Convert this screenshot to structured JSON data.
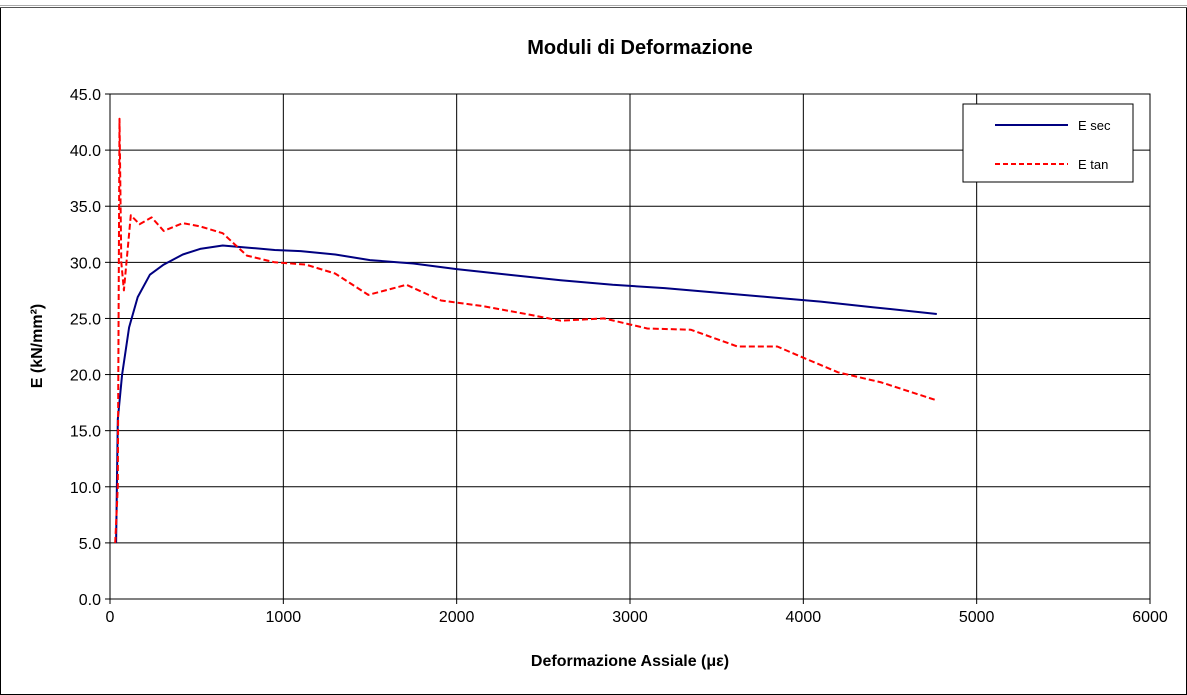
{
  "chart_data": {
    "type": "line",
    "title": "Moduli di Deformazione",
    "xlabel": "Deformazione Assiale (με)",
    "ylabel": "E (kN/mm²)",
    "xlim": [
      0,
      6000
    ],
    "ylim": [
      0,
      45
    ],
    "x_ticks": [
      "0",
      "1000",
      "2000",
      "3000",
      "4000",
      "5000",
      "6000"
    ],
    "y_ticks": [
      "0.0",
      "5.0",
      "10.0",
      "15.0",
      "20.0",
      "25.0",
      "30.0",
      "35.0",
      "40.0",
      "45.0"
    ],
    "x_tick_values": [
      0,
      1000,
      2000,
      3000,
      4000,
      5000,
      6000
    ],
    "y_tick_values": [
      0,
      5,
      10,
      15,
      20,
      25,
      30,
      35,
      40,
      45
    ],
    "grid": true,
    "legend_position": "top-right",
    "series": [
      {
        "name": "E sec",
        "color": "#000080",
        "style": "solid",
        "points": [
          [
            35,
            5.0
          ],
          [
            45,
            16.0
          ],
          [
            70,
            20.0
          ],
          [
            110,
            24.2
          ],
          [
            160,
            26.9
          ],
          [
            230,
            28.9
          ],
          [
            310,
            29.8
          ],
          [
            420,
            30.7
          ],
          [
            520,
            31.2
          ],
          [
            650,
            31.5
          ],
          [
            800,
            31.3
          ],
          [
            950,
            31.1
          ],
          [
            1100,
            31.0
          ],
          [
            1300,
            30.7
          ],
          [
            1500,
            30.2
          ],
          [
            1750,
            29.9
          ],
          [
            2000,
            29.4
          ],
          [
            2300,
            28.9
          ],
          [
            2600,
            28.4
          ],
          [
            2900,
            28.0
          ],
          [
            3200,
            27.7
          ],
          [
            3500,
            27.3
          ],
          [
            3800,
            26.9
          ],
          [
            4100,
            26.5
          ],
          [
            4400,
            26.0
          ],
          [
            4770,
            25.4
          ]
        ]
      },
      {
        "name": "E tan",
        "color": "#ff0000",
        "style": "dashed",
        "points": [
          [
            30,
            5.0
          ],
          [
            45,
            10.0
          ],
          [
            55,
            42.8
          ],
          [
            65,
            30.0
          ],
          [
            80,
            27.5
          ],
          [
            120,
            34.2
          ],
          [
            170,
            33.4
          ],
          [
            240,
            34.0
          ],
          [
            310,
            32.8
          ],
          [
            420,
            33.5
          ],
          [
            520,
            33.2
          ],
          [
            650,
            32.6
          ],
          [
            790,
            30.6
          ],
          [
            950,
            30.0
          ],
          [
            1130,
            29.8
          ],
          [
            1300,
            29.0
          ],
          [
            1490,
            27.1
          ],
          [
            1710,
            28.0
          ],
          [
            1910,
            26.6
          ],
          [
            2150,
            26.1
          ],
          [
            2400,
            25.4
          ],
          [
            2600,
            24.8
          ],
          [
            2850,
            25.0
          ],
          [
            3100,
            24.1
          ],
          [
            3350,
            24.0
          ],
          [
            3620,
            22.5
          ],
          [
            3850,
            22.5
          ],
          [
            4000,
            21.5
          ],
          [
            4200,
            20.2
          ],
          [
            4450,
            19.3
          ],
          [
            4770,
            17.7
          ]
        ]
      }
    ]
  }
}
